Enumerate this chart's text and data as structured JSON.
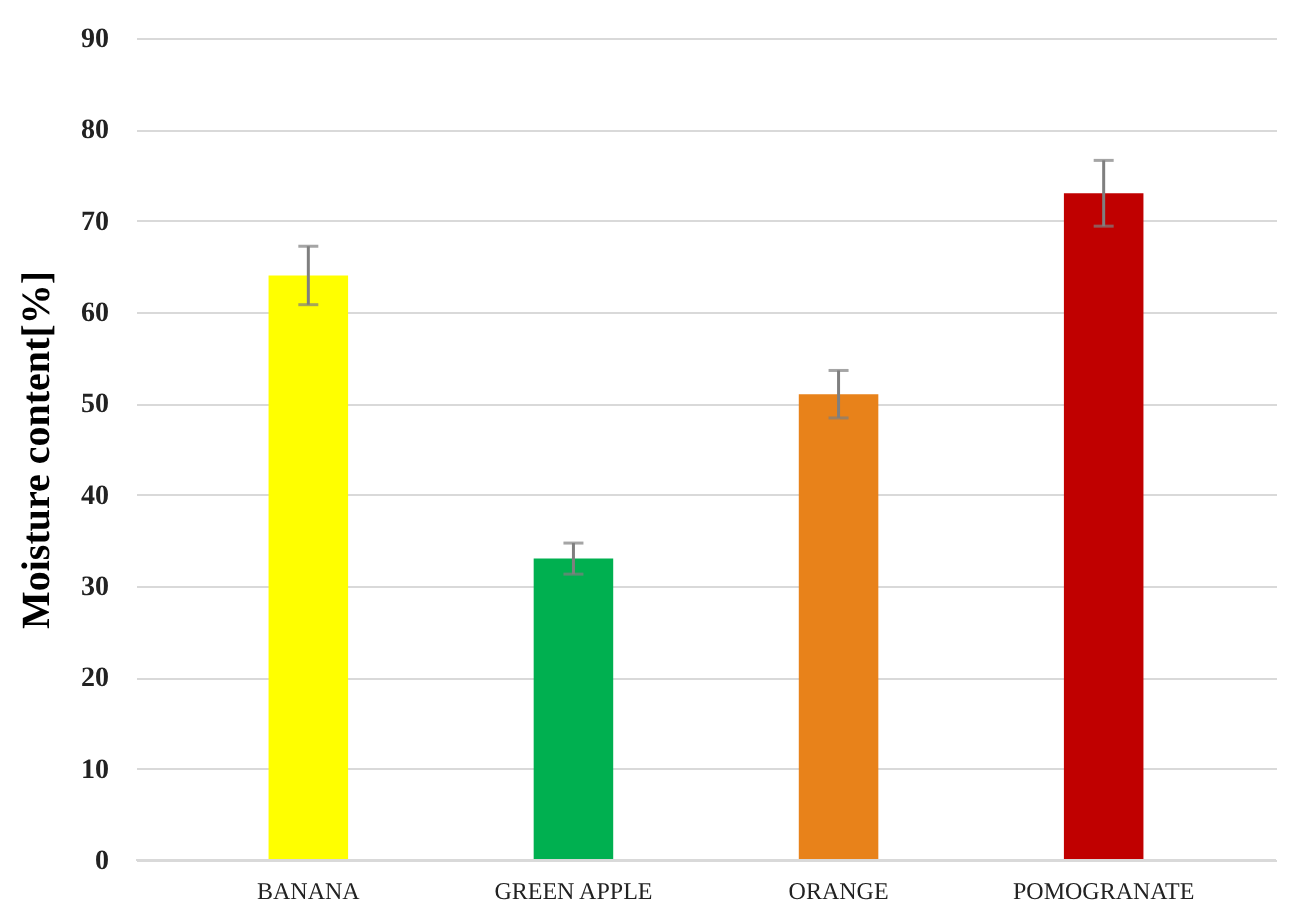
{
  "chart_data": {
    "type": "bar",
    "ylabel": "Moisture content[%]",
    "categories": [
      "BANANA",
      "GREEN APPLE",
      "ORANGE",
      "POMOGRANATE"
    ],
    "values": [
      64,
      33,
      51,
      73
    ],
    "colors": [
      "#ffff00",
      "#00b050",
      "#e8821a",
      "#c00000"
    ],
    "errors": [
      3.2,
      1.7,
      2.6,
      3.6
    ],
    "ylim": [
      0,
      90
    ],
    "yticks": [
      0,
      10,
      20,
      30,
      40,
      50,
      60,
      70,
      80,
      90
    ],
    "grid": "y",
    "legend": false
  }
}
